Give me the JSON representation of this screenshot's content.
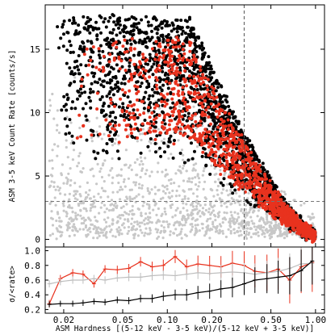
{
  "chart_data": [
    {
      "type": "scatter",
      "xlabel": "",
      "ylabel": "ASM 3-5 keV Count Rate [counts/s]",
      "x_scale": "log",
      "xlim": [
        0.015,
        1.15
      ],
      "ylim": [
        -0.6,
        18.5
      ],
      "y_ticks": [
        0,
        5,
        10,
        15
      ],
      "y_tick_labels": [
        "0",
        "5",
        "10",
        "15"
      ],
      "reference_lines": {
        "x": 0.33,
        "y": 3.0,
        "style": "dashed"
      },
      "colors": {
        "gray": "#c8c8c8",
        "black": "#000000",
        "red": "#e8321e"
      },
      "series": [
        {
          "color": "#c8c8c8",
          "points": [
            [
              0.02,
              7.5
            ],
            [
              0.025,
              4
            ],
            [
              0.03,
              9
            ],
            [
              0.04,
              6
            ],
            [
              0.05,
              3
            ],
            [
              0.06,
              8
            ],
            [
              0.08,
              5
            ],
            [
              0.1,
              2.5
            ],
            [
              0.12,
              7
            ],
            [
              0.15,
              4
            ],
            [
              0.2,
              3
            ],
            [
              0.25,
              2
            ],
            [
              0.3,
              1.5
            ],
            [
              0.4,
              1
            ],
            [
              0.5,
              0.8
            ],
            [
              0.7,
              0.5
            ],
            [
              0.9,
              0.3
            ]
          ]
        },
        {
          "color": "#000000",
          "points": [
            [
              0.02,
              17.5
            ],
            [
              0.03,
              16
            ],
            [
              0.05,
              14
            ],
            [
              0.08,
              15
            ],
            [
              0.1,
              12
            ],
            [
              0.15,
              11
            ],
            [
              0.2,
              10
            ],
            [
              0.25,
              8
            ],
            [
              0.3,
              6
            ],
            [
              0.35,
              5
            ],
            [
              0.4,
              4
            ],
            [
              0.5,
              3
            ],
            [
              0.7,
              1.5
            ],
            [
              0.9,
              0.5
            ]
          ]
        },
        {
          "color": "#e8321e",
          "points": [
            [
              0.02,
              16.5
            ],
            [
              0.04,
              13
            ],
            [
              0.08,
              12
            ],
            [
              0.1,
              14
            ],
            [
              0.15,
              12
            ],
            [
              0.2,
              9
            ],
            [
              0.25,
              7
            ],
            [
              0.3,
              5
            ],
            [
              0.35,
              4
            ],
            [
              0.4,
              3
            ],
            [
              0.5,
              2.5
            ],
            [
              0.7,
              1.2
            ],
            [
              0.9,
              0.4
            ]
          ]
        }
      ]
    },
    {
      "type": "line",
      "xlabel": "ASM Hardness [(5-12 keV - 3-5 keV)/(5-12 keV + 3-5 keV)]",
      "ylabel": "σ/<rate>",
      "x_scale": "log",
      "xlim": [
        0.015,
        1.15
      ],
      "ylim": [
        0.15,
        1.05
      ],
      "x_ticks": [
        0.02,
        0.05,
        0.1,
        0.2,
        0.5,
        1.0
      ],
      "x_tick_labels": [
        "0.02",
        "0.05",
        "0.10",
        "0.20",
        "0.50",
        "1.00"
      ],
      "y_ticks": [
        0.2,
        0.4,
        0.6,
        0.8,
        1.0
      ],
      "y_tick_labels": [
        "0.2",
        "0.4",
        "0.6",
        "0.8",
        "1.0"
      ],
      "series": [
        {
          "color": "#e8321e",
          "x": [
            0.016,
            0.019,
            0.023,
            0.027,
            0.032,
            0.038,
            0.046,
            0.055,
            0.066,
            0.079,
            0.094,
            0.113,
            0.135,
            0.161,
            0.193,
            0.23,
            0.275,
            0.33,
            0.39,
            0.47,
            0.56,
            0.67,
            0.8,
            0.95
          ],
          "y": [
            0.28,
            0.62,
            0.7,
            0.68,
            0.55,
            0.75,
            0.74,
            0.76,
            0.85,
            0.78,
            0.8,
            0.92,
            0.78,
            0.82,
            0.8,
            0.78,
            0.83,
            0.8,
            0.72,
            0.7,
            0.75,
            0.6,
            0.78,
            0.84
          ]
        },
        {
          "color": "#bebebe",
          "x": [
            0.016,
            0.019,
            0.023,
            0.027,
            0.032,
            0.038,
            0.046,
            0.055,
            0.066,
            0.079,
            0.094,
            0.113,
            0.135,
            0.161,
            0.193,
            0.23,
            0.275,
            0.33,
            0.39,
            0.47,
            0.56,
            0.67,
            0.8,
            0.95
          ],
          "y": [
            0.55,
            0.58,
            0.6,
            0.6,
            0.62,
            0.6,
            0.63,
            0.64,
            0.64,
            0.66,
            0.67,
            0.66,
            0.68,
            0.7,
            0.69,
            0.7,
            0.71,
            0.7,
            0.68,
            0.7,
            0.72,
            0.76,
            0.82,
            0.83
          ]
        },
        {
          "color": "#000000",
          "x": [
            0.016,
            0.019,
            0.023,
            0.027,
            0.032,
            0.038,
            0.046,
            0.055,
            0.066,
            0.079,
            0.094,
            0.113,
            0.135,
            0.161,
            0.193,
            0.23,
            0.275,
            0.33,
            0.39,
            0.47,
            0.56,
            0.67,
            0.8,
            0.95
          ],
          "y": [
            0.27,
            0.28,
            0.28,
            0.29,
            0.31,
            0.3,
            0.33,
            0.32,
            0.35,
            0.35,
            0.38,
            0.4,
            0.4,
            0.43,
            0.45,
            0.48,
            0.5,
            0.55,
            0.6,
            0.62,
            0.64,
            0.66,
            0.73,
            0.86
          ]
        }
      ]
    }
  ]
}
